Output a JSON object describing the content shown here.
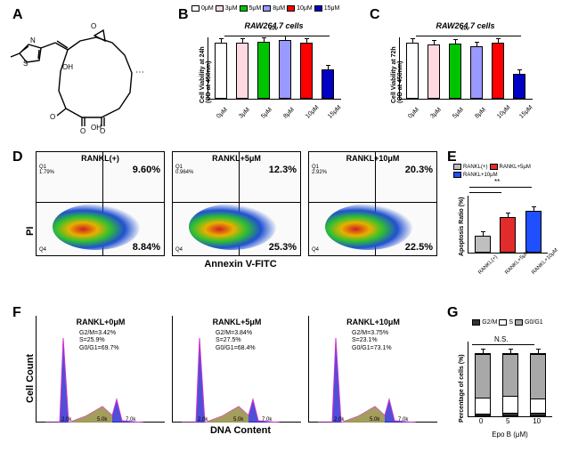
{
  "panels": {
    "A": {
      "label": "A"
    },
    "B": {
      "label": "B",
      "title": "RAW264.7 cells",
      "ylabel": "Cell Viability at 24h\n(OD at 450nm)",
      "categories": [
        "0μM",
        "3μM",
        "5μM",
        "8μM",
        "10μM",
        "15μM"
      ],
      "values": [
        0.92,
        0.92,
        0.93,
        0.95,
        0.92,
        0.48
      ],
      "ylim": [
        0,
        1.0
      ],
      "colors": [
        "#ffffff",
        "#ffd9e0",
        "#00c400",
        "#9999ff",
        "#ff0000",
        "#0000c4"
      ],
      "sig": "***"
    },
    "C": {
      "label": "C",
      "title": "RAW264.7 cells",
      "ylabel": "Cell Viability at 72h\n(OD at 450nm)",
      "categories": [
        "0μM",
        "3μM",
        "5μM",
        "8μM",
        "10μM",
        "15μM"
      ],
      "values": [
        0.91,
        0.88,
        0.9,
        0.86,
        0.92,
        0.4
      ],
      "ylim": [
        0,
        1.0
      ],
      "colors": [
        "#ffffff",
        "#ffd9e0",
        "#00c400",
        "#9999ff",
        "#ff0000",
        "#0000c4"
      ],
      "sig": "***"
    },
    "D": {
      "label": "D",
      "ylabel": "PI",
      "xlabel": "Annexin V-FITC",
      "plots": [
        {
          "title": "RANKL(+)",
          "q1": "Q1\n1.79%",
          "q2": "9.60%",
          "q3": "8.84%",
          "q4": "Q4"
        },
        {
          "title": "RANKL+5μM",
          "q1": "Q1\n0.964%",
          "q2": "12.3%",
          "q3": "25.3%",
          "q4": "Q4"
        },
        {
          "title": "RANKL+10μM",
          "q1": "Q1\n2.92%",
          "q2": "20.3%",
          "q3": "22.5%",
          "q4": "Q4"
        }
      ]
    },
    "E": {
      "label": "E",
      "ylabel": "Apoptosis Ratio (%)",
      "legend": [
        "RANKL(+)",
        "RANKL+5μM",
        "RANKL+10μM"
      ],
      "categories": [
        "RANKL(+)",
        "RANKL+5μM",
        "RANKL+10μM"
      ],
      "values": [
        18,
        37,
        43
      ],
      "ylim": [
        0,
        60
      ],
      "colors": [
        "#bfbfbf",
        "#e22b2b",
        "#1f4fff"
      ],
      "sig": "**"
    },
    "F": {
      "label": "F",
      "ylabel": "Cell Count",
      "xlabel": "DNA Content",
      "plots": [
        {
          "title": "RANKL+0μM",
          "text": "G2/M=3.42%\nS=25.9%\nG0/G1=69.7%"
        },
        {
          "title": "RANKL+5μM",
          "text": "G2/M=3.84%\nS=27.5%\nG0/G1=68.4%"
        },
        {
          "title": "RANKL+10μM",
          "text": "G2/M=3.75%\nS=23.1%\nG0/G1=73.1%"
        }
      ],
      "peak_fill": "#3030d0",
      "s_fill": "#b8b040",
      "outline": "#d030d0"
    },
    "G": {
      "label": "G",
      "ylabel": "Percentage of cells (%)",
      "xlabel": "Epo B (μM)",
      "legend": [
        "G2/M",
        "S",
        "G0/G1"
      ],
      "legend_colors": [
        "#333333",
        "#ffffff",
        "#a8a8a8"
      ],
      "categories": [
        "0",
        "5",
        "10"
      ],
      "stacks": [
        {
          "G2M": 3.4,
          "S": 25.9,
          "G0G1": 69.7
        },
        {
          "G2M": 3.8,
          "S": 27.5,
          "G0G1": 68.4
        },
        {
          "G2M": 3.8,
          "S": 23.1,
          "G0G1": 73.1
        }
      ],
      "ylim": [
        0,
        120
      ],
      "sig": "N.S."
    }
  },
  "legend_top": {
    "items": [
      "0μM",
      "3μM",
      "5μM",
      "8μM",
      "10μM",
      "15μM"
    ],
    "colors": [
      "#ffffff",
      "#ffd9e0",
      "#00c400",
      "#9999ff",
      "#ff0000",
      "#0000c4"
    ]
  }
}
